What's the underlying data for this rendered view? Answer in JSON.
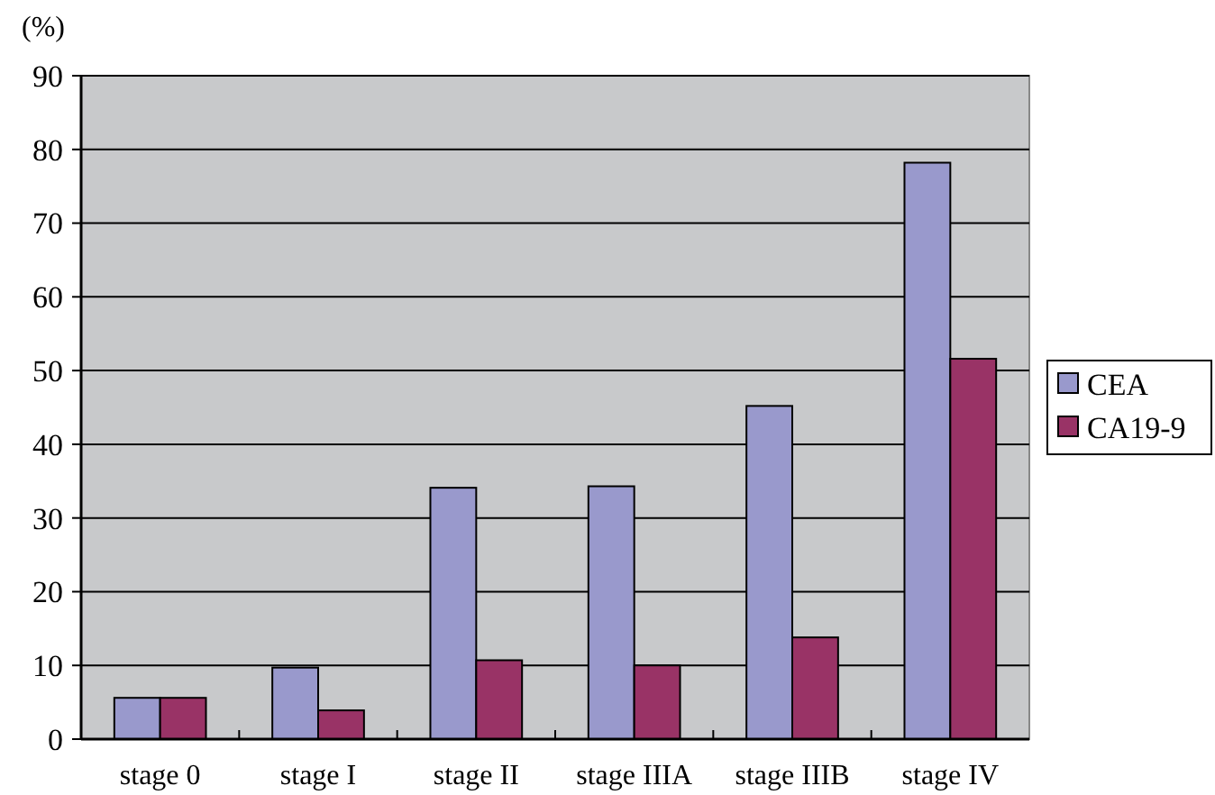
{
  "chart_data": {
    "type": "bar",
    "ylabel": "(%)",
    "categories": [
      "stage 0",
      "stage I",
      "stage II",
      "stage IIIA",
      "stage IIIB",
      "stage IV"
    ],
    "series": [
      {
        "name": "CEA",
        "color": "#9999cc",
        "values": [
          5.6,
          9.7,
          34.1,
          34.3,
          45.2,
          78.2
        ]
      },
      {
        "name": "CA19-9",
        "color": "#993366",
        "values": [
          5.6,
          3.9,
          10.7,
          10.0,
          13.8,
          51.6
        ]
      }
    ],
    "ylim": [
      0,
      90
    ],
    "yticks": [
      0,
      10,
      20,
      30,
      40,
      50,
      60,
      70,
      80,
      90
    ],
    "grid": "y",
    "legend": "right"
  }
}
